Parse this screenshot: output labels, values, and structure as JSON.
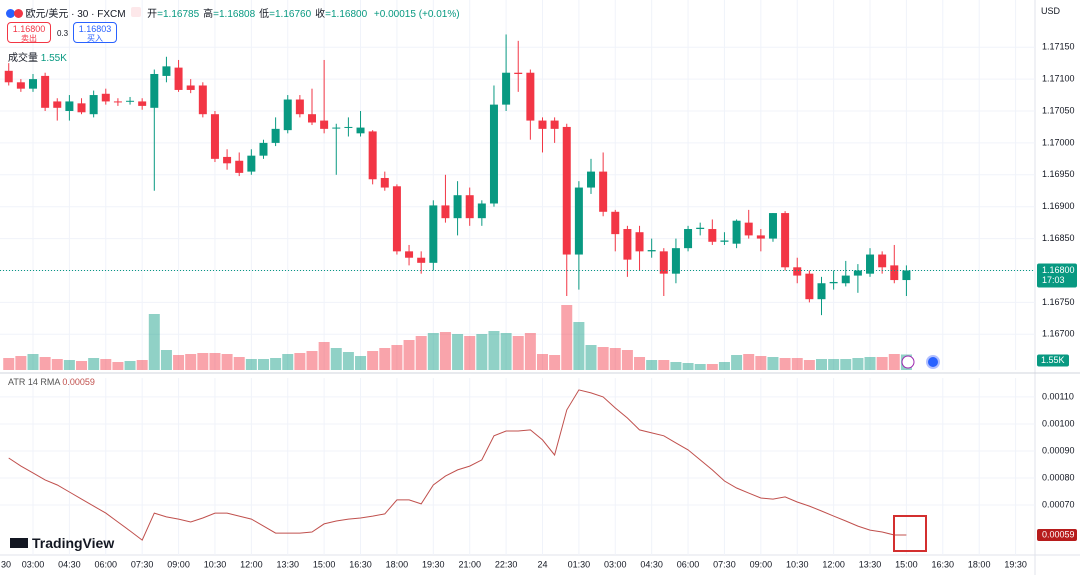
{
  "header": {
    "symbol": "欧元/美元 · 30 · FXCM",
    "ohlc": [
      {
        "label": "开",
        "value": "=1.16785"
      },
      {
        "label": "高",
        "value": "=1.16808"
      },
      {
        "label": "低",
        "value": "=1.16760"
      },
      {
        "label": "收",
        "value": "=1.16800"
      }
    ],
    "change": "+0.00015 (+0.01%)",
    "sell": {
      "price": "1.16800",
      "label": "卖出"
    },
    "spread": "0.3",
    "buy": {
      "price": "1.16803",
      "label": "买入"
    },
    "currency": "USD",
    "logo": "TradingView"
  },
  "chart_data": {
    "type": "candlestick",
    "x": [
      1,
      2,
      3,
      4,
      5,
      6,
      7,
      8,
      9,
      10,
      11,
      12,
      13,
      14,
      15,
      16,
      17,
      18,
      19,
      20,
      21,
      22,
      23,
      24,
      25,
      26,
      27,
      28,
      29,
      30,
      31,
      32,
      33,
      34,
      35,
      36,
      37,
      38,
      39,
      40,
      41,
      42,
      43,
      44,
      45,
      46,
      47,
      48,
      49,
      50,
      51,
      52,
      53,
      54,
      55,
      56,
      57,
      58,
      59,
      60,
      61,
      62,
      63,
      64,
      65,
      66,
      67,
      68,
      69,
      70,
      71,
      72,
      73,
      74,
      75
    ],
    "open": [
      1.17113,
      1.17095,
      1.17085,
      1.17105,
      1.17065,
      1.1705,
      1.17062,
      1.17045,
      1.17077,
      1.17065,
      1.17065,
      1.17065,
      1.17055,
      1.17105,
      1.17118,
      1.1709,
      1.1709,
      1.17045,
      1.16978,
      1.16972,
      1.16955,
      1.1698,
      1.17,
      1.1702,
      1.17068,
      1.17045,
      1.17035,
      1.17023,
      1.17024,
      1.17015,
      1.17018,
      1.16945,
      1.16932,
      1.1683,
      1.1682,
      1.16812,
      1.16902,
      1.16882,
      1.16918,
      1.16882,
      1.16905,
      1.1706,
      1.1711,
      1.1711,
      1.17035,
      1.17035,
      1.17025,
      1.16825,
      1.1693,
      1.16955,
      1.16892,
      1.16865,
      1.1686,
      1.1683,
      1.1683,
      1.16795,
      1.16835,
      1.16865,
      1.16865,
      1.16845,
      1.16842,
      1.16875,
      1.16855,
      1.1685,
      1.1689,
      1.16805,
      1.16795,
      1.16755,
      1.1678,
      1.1678,
      1.16792,
      1.16795,
      1.16825,
      1.16808,
      1.16785
    ],
    "high": [
      1.17125,
      1.171,
      1.17108,
      1.1711,
      1.1707,
      1.17075,
      1.1707,
      1.17082,
      1.17085,
      1.1707,
      1.17072,
      1.1707,
      1.17115,
      1.17135,
      1.1713,
      1.171,
      1.17095,
      1.1705,
      1.1699,
      1.16985,
      1.1699,
      1.17005,
      1.1704,
      1.17075,
      1.17075,
      1.17085,
      1.1713,
      1.1703,
      1.1704,
      1.1705,
      1.1702,
      1.16955,
      1.16935,
      1.1684,
      1.1683,
      1.1691,
      1.1695,
      1.1694,
      1.1693,
      1.1691,
      1.1709,
      1.1717,
      1.1716,
      1.17115,
      1.1704,
      1.1704,
      1.1703,
      1.1694,
      1.16975,
      1.16985,
      1.16895,
      1.1687,
      1.1687,
      1.1685,
      1.16835,
      1.1685,
      1.1687,
      1.16875,
      1.1688,
      1.1686,
      1.1688,
      1.16895,
      1.16865,
      1.1689,
      1.16893,
      1.1682,
      1.168,
      1.1679,
      1.168,
      1.16815,
      1.1681,
      1.16835,
      1.1683,
      1.1684,
      1.16808
    ],
    "low": [
      1.1709,
      1.1708,
      1.1708,
      1.1705,
      1.17035,
      1.17035,
      1.17045,
      1.1704,
      1.1706,
      1.17058,
      1.1706,
      1.17052,
      1.16925,
      1.17095,
      1.1708,
      1.17078,
      1.1704,
      1.1697,
      1.16958,
      1.16948,
      1.1695,
      1.16975,
      1.16995,
      1.17015,
      1.1704,
      1.17028,
      1.17015,
      1.1695,
      1.1701,
      1.1701,
      1.16935,
      1.16925,
      1.16825,
      1.16808,
      1.16795,
      1.168,
      1.16875,
      1.16855,
      1.1687,
      1.1687,
      1.169,
      1.1705,
      1.1708,
      1.17005,
      1.16985,
      1.17,
      1.1676,
      1.1677,
      1.1692,
      1.16885,
      1.1683,
      1.1679,
      1.168,
      1.1682,
      1.1676,
      1.1678,
      1.1683,
      1.16855,
      1.1684,
      1.1684,
      1.16835,
      1.1685,
      1.1683,
      1.16845,
      1.168,
      1.1678,
      1.1675,
      1.1673,
      1.1677,
      1.16775,
      1.16765,
      1.1679,
      1.16795,
      1.1678,
      1.1676
    ],
    "close": [
      1.17095,
      1.17085,
      1.171,
      1.17055,
      1.17055,
      1.17065,
      1.17048,
      1.17075,
      1.17065,
      1.17064,
      1.17066,
      1.17058,
      1.17108,
      1.1712,
      1.17083,
      1.17083,
      1.17045,
      1.16975,
      1.16968,
      1.16953,
      1.1698,
      1.17,
      1.17022,
      1.17068,
      1.17045,
      1.17032,
      1.17022,
      1.17024,
      1.17025,
      1.17024,
      1.16943,
      1.1693,
      1.1683,
      1.1682,
      1.16812,
      1.16902,
      1.16882,
      1.16918,
      1.16882,
      1.16905,
      1.1706,
      1.1711,
      1.17108,
      1.17035,
      1.17022,
      1.17022,
      1.16825,
      1.1693,
      1.16955,
      1.16892,
      1.16857,
      1.16817,
      1.1683,
      1.16832,
      1.16795,
      1.16835,
      1.16865,
      1.16867,
      1.16845,
      1.16847,
      1.16878,
      1.16855,
      1.1685,
      1.1689,
      1.16805,
      1.16792,
      1.16755,
      1.1678,
      1.16782,
      1.16792,
      1.168,
      1.16825,
      1.16805,
      1.16785,
      1.168
    ],
    "up_color": "#089981",
    "down_color": "#f23645",
    "xlim": [
      0.28,
      85.6
    ],
    "xticks": [
      {
        "value": 0,
        "label": "30"
      },
      {
        "value": 3,
        "label": "03:00"
      },
      {
        "value": 6,
        "label": "04:30"
      },
      {
        "value": 9,
        "label": "06:00"
      },
      {
        "value": 12,
        "label": "07:30"
      },
      {
        "value": 15,
        "label": "09:00"
      },
      {
        "value": 18,
        "label": "10:30"
      },
      {
        "value": 21,
        "label": "12:00"
      },
      {
        "value": 24,
        "label": "13:30"
      },
      {
        "value": 27,
        "label": "15:00"
      },
      {
        "value": 30,
        "label": "16:30"
      },
      {
        "value": 33,
        "label": "18:00"
      },
      {
        "value": 36,
        "label": "19:30"
      },
      {
        "value": 39,
        "label": "21:00"
      },
      {
        "value": 42,
        "label": "22:30"
      },
      {
        "value": 45,
        "label": "24"
      },
      {
        "value": 48,
        "label": "01:30"
      },
      {
        "value": 51,
        "label": "03:00"
      },
      {
        "value": 54,
        "label": "04:30"
      },
      {
        "value": 57,
        "label": "06:00"
      },
      {
        "value": 60,
        "label": "07:30"
      },
      {
        "value": 63,
        "label": "09:00"
      },
      {
        "value": 66,
        "label": "10:30"
      },
      {
        "value": 69,
        "label": "12:00"
      },
      {
        "value": 72,
        "label": "13:30"
      },
      {
        "value": 75,
        "label": "15:00"
      },
      {
        "value": 78,
        "label": "16:30"
      },
      {
        "value": 81,
        "label": "18:00"
      },
      {
        "value": 84,
        "label": "19:30"
      }
    ],
    "ylim": [
      1.16644,
      1.17224
    ],
    "yticks": [
      {
        "value": 1.1715,
        "label": "1.17150"
      },
      {
        "value": 1.171,
        "label": "1.17100"
      },
      {
        "value": 1.1705,
        "label": "1.17050"
      },
      {
        "value": 1.17,
        "label": "1.17000"
      },
      {
        "value": 1.1695,
        "label": "1.16950"
      },
      {
        "value": 1.169,
        "label": "1.16900"
      },
      {
        "value": 1.1685,
        "label": "1.16850"
      },
      {
        "value": 1.168,
        "label": "1.16800"
      },
      {
        "value": 1.1675,
        "label": "1.16750"
      },
      {
        "value": 1.167,
        "label": "1.16700"
      }
    ],
    "grid": true,
    "last_price": {
      "value": 1.168,
      "label": "1.16800",
      "time": "17:03"
    },
    "volume": {
      "name": "成交量",
      "last_label": "1.55K",
      "values": [
        1200,
        1400,
        1600,
        1300,
        1100,
        1000,
        900,
        1200,
        1100,
        800,
        900,
        1000,
        5600,
        2000,
        1500,
        1600,
        1700,
        1700,
        1600,
        1300,
        1100,
        1100,
        1200,
        1600,
        1700,
        1900,
        2800,
        2200,
        1800,
        1400,
        1900,
        2200,
        2500,
        3000,
        3400,
        3700,
        3800,
        3600,
        3400,
        3600,
        3900,
        3700,
        3400,
        3700,
        1600,
        1500,
        6500,
        4800,
        2500,
        2300,
        2200,
        2000,
        1300,
        1000,
        1000,
        800,
        700,
        600,
        600,
        800,
        1500,
        1600,
        1400,
        1300,
        1200,
        1200,
        1000,
        1100,
        1100,
        1100,
        1200,
        1300,
        1300,
        1600,
        1550
      ]
    },
    "atr": {
      "name": "ATR 14 RMA",
      "color": "#c0504d",
      "last_label": "0.00059",
      "values": [
        0.000874,
        0.000844,
        0.000819,
        0.000793,
        0.000774,
        0.000748,
        0.000722,
        0.000696,
        0.00067,
        0.000637,
        0.000604,
        0.00057,
        0.00067,
        0.000656,
        0.000648,
        0.000637,
        0.000652,
        0.00067,
        0.00067,
        0.000659,
        0.000648,
        0.000622,
        0.000596,
        0.000596,
        0.000596,
        0.0006,
        0.00063,
        0.000641,
        0.000648,
        0.000652,
        0.000659,
        0.000667,
        0.000719,
        0.000719,
        0.000704,
        0.000774,
        0.000807,
        0.00083,
        0.000844,
        0.000867,
        0.000956,
        0.000974,
        0.000974,
        0.000978,
        0.000941,
        0.000885,
        0.001052,
        0.001126,
        0.001115,
        0.0011,
        0.001059,
        0.001022,
        0.000978,
        0.000967,
        0.000956,
        0.00093,
        0.000904,
        0.000867,
        0.00083,
        0.000789,
        0.000763,
        0.000744,
        0.000726,
        0.000722,
        0.00073,
        0.000711,
        0.000696,
        0.000678,
        0.000659,
        0.000641,
        0.000622,
        0.000607,
        0.0006,
        0.000589,
        0.000589
      ],
      "ylim": [
        0.000515,
        0.00117
      ],
      "yticks": [
        {
          "value": 0.0011,
          "label": "0.00110"
        },
        {
          "value": 0.001,
          "label": "0.00100"
        },
        {
          "value": 0.0009,
          "label": "0.00090"
        },
        {
          "value": 0.0008,
          "label": "0.00080"
        },
        {
          "value": 0.0007,
          "label": "0.00070"
        }
      ]
    }
  }
}
